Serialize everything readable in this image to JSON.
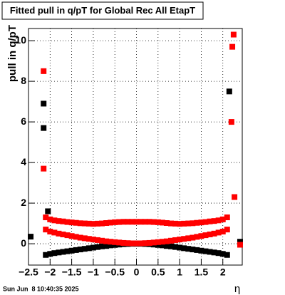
{
  "chart_data": {
    "type": "scatter",
    "title": "Fitted pull in q/pT for Global Rec All EtapT",
    "ylabel": "pull in q/pT",
    "xlabel": "η",
    "footer": "Sun Jun  8 10:40:35 2025",
    "xlim": [
      -2.5,
      2.45
    ],
    "ylim": [
      -1.05,
      10.6
    ],
    "xticks": [
      {
        "value": -2.5,
        "label": "−2.5"
      },
      {
        "value": -2,
        "label": "−2"
      },
      {
        "value": -1.5,
        "label": "−1.5"
      },
      {
        "value": -1,
        "label": "−1"
      },
      {
        "value": -0.5,
        "label": "−0.5"
      },
      0,
      0.5,
      1,
      1.5,
      2
    ],
    "yticks": [
      0,
      2,
      4,
      6,
      8,
      10
    ],
    "grid": true,
    "series": [
      {
        "color": "#000000",
        "x": [
          -2.1,
          -2.0,
          -1.9,
          -1.8,
          -1.7,
          -1.6,
          -1.5,
          -1.4,
          -1.3,
          -1.2,
          -1.1,
          -1.0,
          -0.9,
          -0.8,
          -0.7,
          -0.6,
          -0.5,
          -0.4,
          -0.3,
          -0.2,
          -0.1,
          0,
          0.1,
          0.2,
          0.3,
          0.4,
          0.5,
          0.6,
          0.7,
          0.8,
          0.9,
          1.0,
          1.1,
          1.2,
          1.3,
          1.4,
          1.5,
          1.6,
          1.7,
          1.8,
          1.9,
          2.0,
          2.1
        ],
        "values": [
          -0.55,
          -0.5,
          -0.46,
          -0.43,
          -0.4,
          -0.37,
          -0.34,
          -0.31,
          -0.28,
          -0.25,
          -0.22,
          -0.19,
          -0.16,
          -0.13,
          -0.11,
          -0.08,
          -0.06,
          -0.04,
          -0.02,
          -0.01,
          0,
          0,
          0,
          -0.01,
          -0.02,
          -0.04,
          -0.06,
          -0.08,
          -0.11,
          -0.13,
          -0.16,
          -0.19,
          -0.22,
          -0.25,
          -0.28,
          -0.31,
          -0.34,
          -0.37,
          -0.4,
          -0.43,
          -0.46,
          -0.5,
          -0.55
        ]
      },
      {
        "color": "#ff0000",
        "x": [
          -2.1,
          -2.0,
          -1.9,
          -1.8,
          -1.7,
          -1.6,
          -1.5,
          -1.4,
          -1.3,
          -1.2,
          -1.1,
          -1.0,
          -0.9,
          -0.8,
          -0.7,
          -0.6,
          -0.5,
          -0.4,
          -0.3,
          -0.2,
          -0.1,
          0,
          0.1,
          0.2,
          0.3,
          0.4,
          0.5,
          0.6,
          0.7,
          0.8,
          0.9,
          1.0,
          1.1,
          1.2,
          1.3,
          1.4,
          1.5,
          1.6,
          1.7,
          1.8,
          1.9,
          2.0,
          2.1
        ],
        "values": [
          0.7,
          0.6,
          0.55,
          0.5,
          0.46,
          0.42,
          0.38,
          0.34,
          0.3,
          0.27,
          0.24,
          0.21,
          0.18,
          0.15,
          0.12,
          0.1,
          0.08,
          0.06,
          0.04,
          0.03,
          0.02,
          0.02,
          0.02,
          0.03,
          0.04,
          0.06,
          0.08,
          0.1,
          0.12,
          0.15,
          0.18,
          0.21,
          0.24,
          0.27,
          0.3,
          0.34,
          0.38,
          0.42,
          0.46,
          0.5,
          0.55,
          0.6,
          0.7
        ]
      },
      {
        "color": "#ff0000",
        "x": [
          -2.1,
          -2.0,
          -1.9,
          -1.8,
          -1.7,
          -1.6,
          -1.5,
          -1.4,
          -1.3,
          -1.2,
          -1.1,
          -1.0,
          -0.9,
          -0.8,
          -0.7,
          -0.6,
          -0.5,
          -0.4,
          -0.3,
          -0.2,
          -0.1,
          0,
          0.1,
          0.2,
          0.3,
          0.4,
          0.5,
          0.6,
          0.7,
          0.8,
          0.9,
          1.0,
          1.1,
          1.2,
          1.3,
          1.4,
          1.5,
          1.6,
          1.7,
          1.8,
          1.9,
          2.0,
          2.1
        ],
        "values": [
          1.3,
          1.2,
          1.15,
          1.12,
          1.1,
          1.07,
          1.05,
          1.03,
          1.01,
          1.0,
          0.99,
          0.98,
          0.99,
          1.0,
          1.02,
          1.04,
          1.06,
          1.07,
          1.08,
          1.08,
          1.08,
          1.08,
          1.08,
          1.08,
          1.08,
          1.07,
          1.06,
          1.04,
          1.02,
          1.0,
          0.99,
          0.98,
          0.99,
          1.0,
          1.01,
          1.03,
          1.05,
          1.07,
          1.1,
          1.12,
          1.15,
          1.2,
          1.3
        ]
      },
      {
        "color": "#000000",
        "x": [
          -2.45,
          -2.15,
          -2.15,
          -2.05,
          2.15,
          2.4
        ],
        "values": [
          0.35,
          6.9,
          5.7,
          1.6,
          7.5,
          0.1
        ]
      },
      {
        "color": "#ff0000",
        "x": [
          -2.15,
          -2.15,
          2.2,
          2.22,
          2.25,
          2.27,
          2.4
        ],
        "values": [
          8.5,
          3.7,
          6.0,
          9.7,
          10.3,
          2.3,
          -0.05
        ]
      }
    ]
  }
}
